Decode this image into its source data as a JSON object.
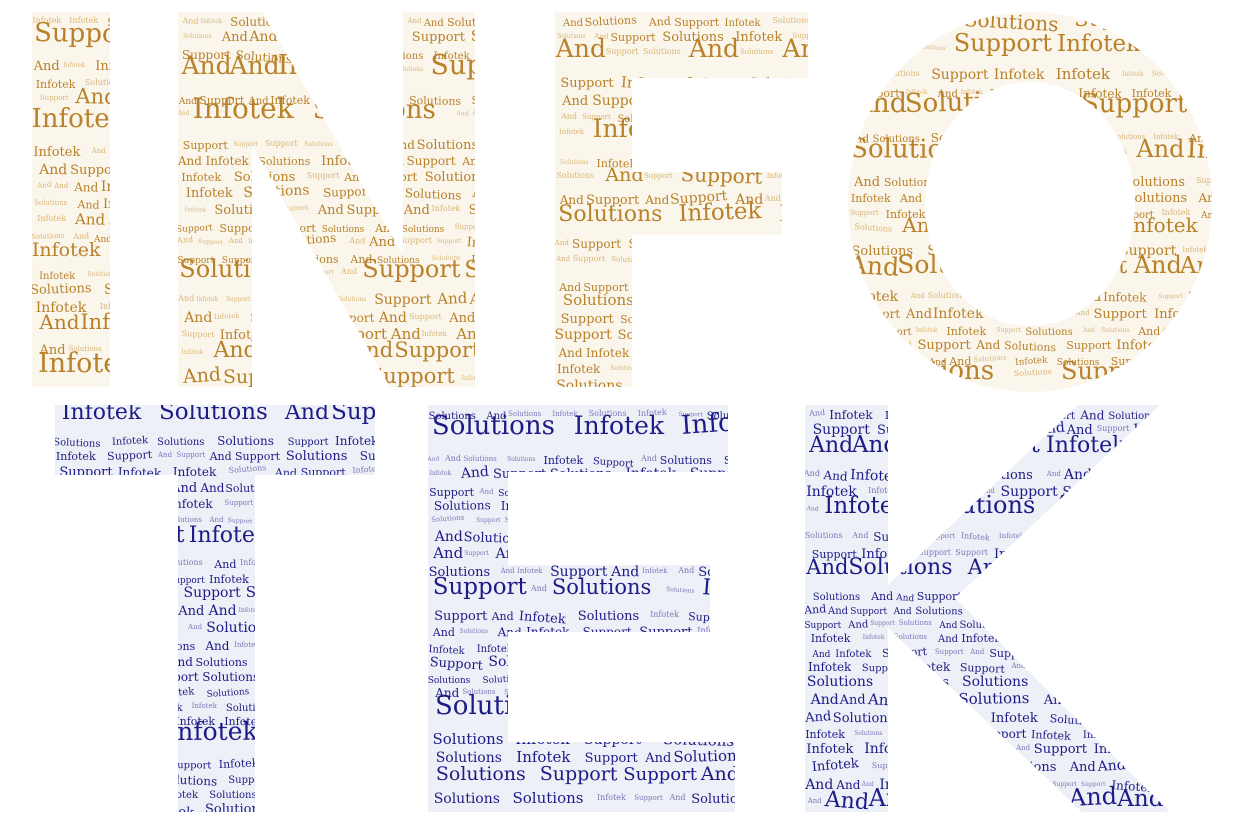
{
  "words": [
    "Infotek",
    "And",
    "Support",
    "Solutions"
  ],
  "rows": [
    {
      "name": "top-row",
      "text_color": "#b8812a",
      "faint_color": "#d9b678",
      "fill_color": "#fbf6ec",
      "letters": [
        {
          "char": "I",
          "id": "I",
          "words": [
            "And",
            "Infotek",
            "Solutions",
            "Support",
            "And",
            "Infotek"
          ]
        },
        {
          "char": "N",
          "id": "N",
          "words": [
            "And",
            "Infotek",
            "Solutions",
            "Support",
            "And",
            "Support"
          ]
        },
        {
          "char": "F",
          "id": "F",
          "words": [
            "Infotek",
            "Solutions",
            "And",
            "Support",
            "Solutions"
          ]
        },
        {
          "char": "O",
          "id": "O",
          "words": [
            "Infotek",
            "And",
            "Solutions",
            "Support",
            "Infotek",
            "And"
          ]
        }
      ]
    },
    {
      "name": "bottom-row",
      "text_color": "#1d1c86",
      "faint_color": "#7a79b8",
      "fill_color": "#eef0f8",
      "letters": [
        {
          "char": "T",
          "id": "T",
          "words": [
            "Infotek",
            "Solutions",
            "And",
            "Support",
            "Infotek"
          ]
        },
        {
          "char": "E",
          "id": "E",
          "words": [
            "Infotek",
            "Support",
            "And",
            "Solutions",
            "Solutions"
          ]
        },
        {
          "char": "K",
          "id": "K",
          "words": [
            "And",
            "Support",
            "Infotek",
            "Solutions",
            "And"
          ]
        }
      ]
    }
  ]
}
